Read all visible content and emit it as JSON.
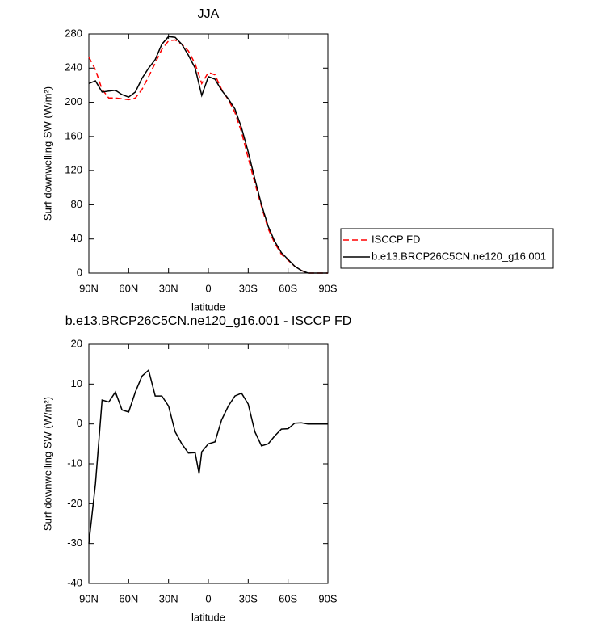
{
  "chart_data": [
    {
      "type": "line",
      "title": "JJA",
      "xlabel": "latitude",
      "ylabel": "Surf downwelling SW (W/m²)",
      "x": [
        90,
        85,
        80,
        75,
        70,
        65,
        60,
        55,
        50,
        45,
        40,
        35,
        30,
        25,
        20,
        15,
        10,
        5,
        0,
        -5,
        -10,
        -15,
        -20,
        -25,
        -30,
        -35,
        -40,
        -45,
        -50,
        -55,
        -60,
        -65,
        -70,
        -75,
        -80,
        -85,
        -90
      ],
      "series": [
        {
          "name": "ISCCP FD",
          "color": "#ff0000",
          "dashed": true,
          "values": [
            253,
            238,
            215,
            205,
            205,
            204,
            203,
            205,
            215,
            230,
            246,
            262,
            272,
            273,
            268,
            260,
            245,
            222,
            235,
            232,
            215,
            203,
            188,
            165,
            135,
            105,
            78,
            52,
            35,
            22,
            15,
            8,
            3,
            0,
            0,
            0,
            0
          ]
        },
        {
          "name": "b.e13.BRCP26C5CN.ne120_g16.001",
          "color": "#000000",
          "dashed": false,
          "values": [
            222,
            225,
            212,
            213,
            214,
            209,
            206,
            212,
            228,
            240,
            250,
            268,
            277,
            276,
            268,
            255,
            240,
            208,
            230,
            227,
            214,
            204,
            192,
            170,
            142,
            110,
            80,
            55,
            37,
            24,
            16,
            8,
            3,
            0,
            0,
            0,
            0
          ]
        }
      ],
      "xlim": [
        90,
        -90
      ],
      "xticks": [
        {
          "value": 90,
          "label": "90N"
        },
        {
          "value": 60,
          "label": "60N"
        },
        {
          "value": 30,
          "label": "30N"
        },
        0,
        {
          "value": -30,
          "label": "30S"
        },
        {
          "value": -60,
          "label": "60S"
        },
        {
          "value": -90,
          "label": "90S"
        }
      ],
      "ylim": [
        0,
        280
      ],
      "yticks": [
        0,
        40,
        80,
        120,
        160,
        200,
        240,
        280
      ]
    },
    {
      "type": "line",
      "title": "b.e13.BRCP26C5CN.ne120_g16.001 - ISCCP FD",
      "xlabel": "latitude",
      "ylabel": "Surf downwelling SW (W/m²)",
      "x": [
        90,
        85,
        80,
        75,
        70,
        65,
        60,
        55,
        50,
        45,
        40,
        35,
        30,
        25,
        20,
        15,
        10,
        7,
        5,
        0,
        -5,
        -10,
        -15,
        -20,
        -25,
        -30,
        -35,
        -40,
        -45,
        -50,
        -55,
        -60,
        -65,
        -70,
        -75,
        -80,
        -85,
        -90
      ],
      "values": [
        -30,
        -15,
        6,
        5.5,
        8,
        3.5,
        3,
        8,
        12,
        13.5,
        7,
        7,
        4.5,
        -2,
        -5,
        -7.3,
        -7.2,
        -12.5,
        -7,
        -5,
        -4.5,
        1,
        4.5,
        7,
        7.7,
        5,
        -2,
        -5.5,
        -5,
        -3,
        -1.3,
        -1.2,
        0.2,
        0.3,
        0,
        0,
        0,
        0
      ],
      "color": "#000000",
      "xlim": [
        90,
        -90
      ],
      "xticks": [
        {
          "value": 90,
          "label": "90N"
        },
        {
          "value": 60,
          "label": "60N"
        },
        {
          "value": 30,
          "label": "30N"
        },
        0,
        {
          "value": -30,
          "label": "30S"
        },
        {
          "value": -60,
          "label": "60S"
        },
        {
          "value": -90,
          "label": "90S"
        }
      ],
      "ylim": [
        -40,
        20
      ],
      "yticks": [
        -40,
        -30,
        -20,
        -10,
        0,
        10,
        20
      ]
    }
  ]
}
